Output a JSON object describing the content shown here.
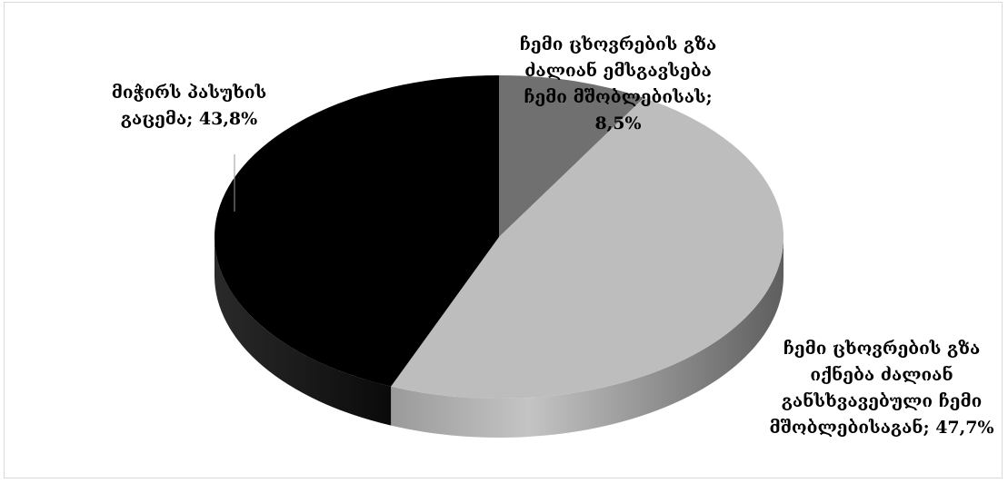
{
  "chart_data": {
    "type": "pie",
    "style": "3d",
    "slices": [
      {
        "label": [
          "ჩემი ცხოვრების გზა",
          "ძალიან ემსგავსება",
          "ჩემი მშობლებისას;",
          "8,5%"
        ],
        "value": 8.5,
        "color": "#707070"
      },
      {
        "label": [
          "ჩემი ცხოვრების გზა",
          "იქნება ძალიან",
          "განსხვავებული ჩემი",
          "მშობლებისაგან; 47,7%"
        ],
        "value": 47.7,
        "color": "#bdbdbd"
      },
      {
        "label": [
          "მიჭირს პასუხის",
          "გაცემა; 43,8%"
        ],
        "value": 43.8,
        "color": "#000000"
      }
    ],
    "start_angle": "12 o'clock",
    "direction": "clockwise",
    "legend": "none"
  }
}
